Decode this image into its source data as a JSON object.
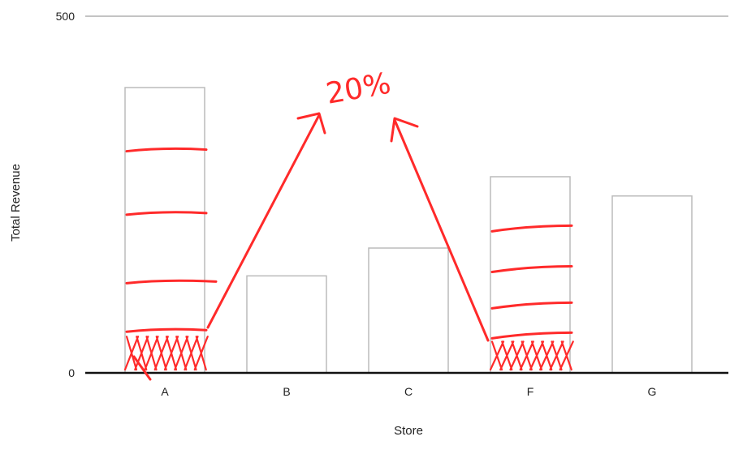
{
  "chart_data": {
    "type": "bar",
    "title": "",
    "xlabel": "Store",
    "ylabel": "Total Revenue",
    "ylim": [
      0,
      500
    ],
    "y_ticks": [
      0,
      500
    ],
    "categories": [
      "A",
      "B",
      "C",
      "F",
      "G"
    ],
    "values": [
      400,
      136,
      175,
      275,
      248
    ],
    "grid": false,
    "bar_color": "#ffffff",
    "bar_edge_color": "#bbbbbb",
    "annotation": {
      "text": "20%",
      "color": "#ff2a2a",
      "note_values": {
        "A": [
          313,
          224,
          128,
          60
        ],
        "F": [
          203,
          146,
          95,
          53
        ]
      }
    }
  }
}
